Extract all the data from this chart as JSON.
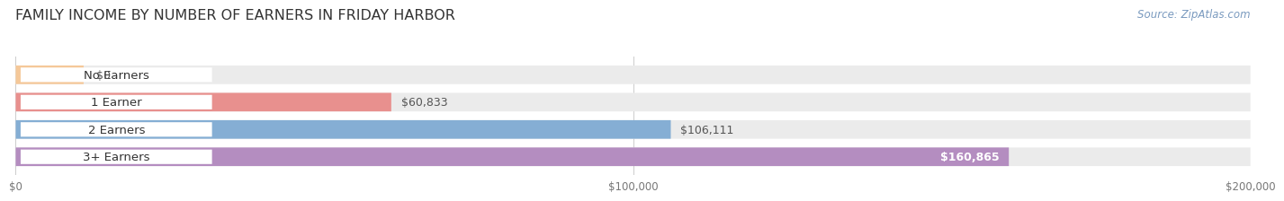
{
  "title": "FAMILY INCOME BY NUMBER OF EARNERS IN FRIDAY HARBOR",
  "source": "Source: ZipAtlas.com",
  "categories": [
    "No Earners",
    "1 Earner",
    "2 Earners",
    "3+ Earners"
  ],
  "values": [
    0,
    60833,
    106111,
    160865
  ],
  "bar_colors": [
    "#f5c899",
    "#e8908e",
    "#85aed4",
    "#b48dc0"
  ],
  "bar_bg_color": "#ebebeb",
  "xlim": [
    0,
    200000
  ],
  "xticks": [
    0,
    100000,
    200000
  ],
  "xtick_labels": [
    "$0",
    "$100,000",
    "$200,000"
  ],
  "value_labels": [
    "$0",
    "$60,833",
    "$106,111",
    "$160,865"
  ],
  "value_label_inside": [
    false,
    false,
    false,
    true
  ],
  "background_color": "#ffffff",
  "title_fontsize": 11.5,
  "bar_label_fontsize": 9,
  "source_fontsize": 8.5,
  "category_fontsize": 9.5,
  "bar_height": 0.68,
  "bar_gap": 0.18
}
